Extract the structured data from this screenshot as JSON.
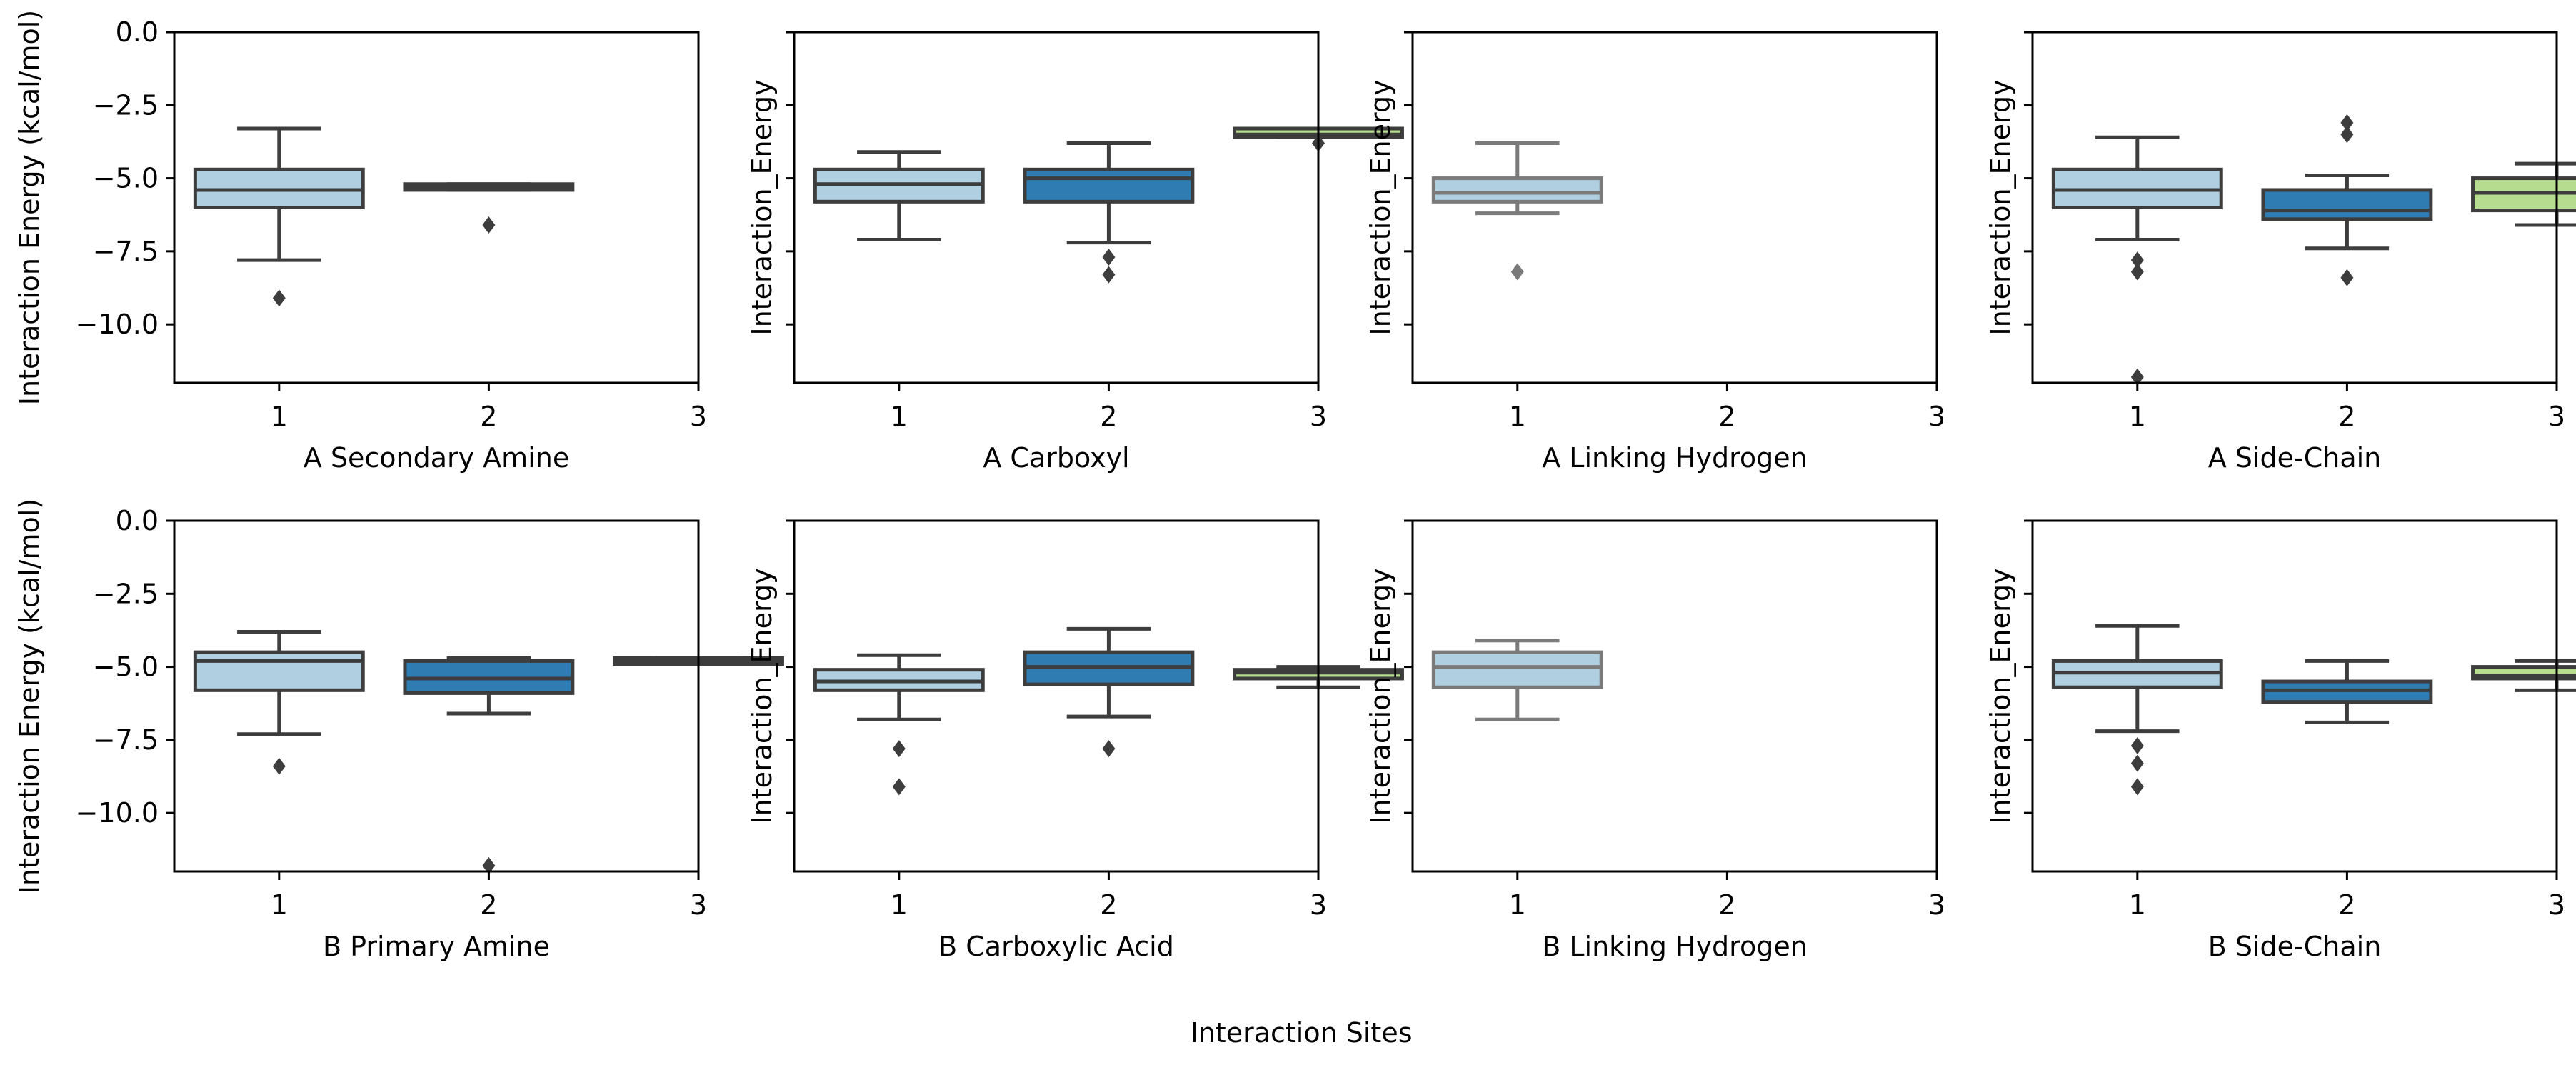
{
  "chart_data": {
    "type": "box",
    "supxlabel": "Interaction Sites",
    "ylim": [
      -12,
      0
    ],
    "yticks": [
      0.0,
      -2.5,
      -5.0,
      -7.5,
      -10.0
    ],
    "ytick_labels": [
      "0.0",
      "−2.5",
      "−5.0",
      "−7.5",
      "−10.0"
    ],
    "xticks": [
      1,
      2,
      3
    ],
    "xtick_labels": [
      "1",
      "2",
      "3"
    ],
    "colors": {
      "1": "#b0cfe0",
      "2": "#2f7cb3",
      "3": "#b6dc8f",
      "edge": "#3d3d3d",
      "edge_light": "#7a7a7a"
    },
    "panels": [
      {
        "xlabel": "A Secondary Amine",
        "ylabel": "Interaction Energy (kcal/mol)",
        "show_yticklabels": true,
        "xtick_labels": [
          "1",
          "2",
          "3"
        ],
        "boxes": [
          {
            "x": 1,
            "whislo": -7.8,
            "q1": -6.0,
            "med": -5.4,
            "q3": -4.7,
            "whishi": -3.3,
            "fliers": [
              -9.1
            ]
          },
          {
            "x": 2,
            "whislo": -5.4,
            "q1": -5.4,
            "med": -5.3,
            "q3": -5.2,
            "whishi": -5.2,
            "fliers": [
              -6.6
            ]
          }
        ]
      },
      {
        "xlabel": "A Carboxyl",
        "ylabel": "Interaction_Energy",
        "show_yticklabels": false,
        "xtick_labels": [
          "1",
          "2",
          "3"
        ],
        "boxes": [
          {
            "x": 1,
            "whislo": -7.1,
            "q1": -5.8,
            "med": -5.2,
            "q3": -4.7,
            "whishi": -4.1,
            "fliers": []
          },
          {
            "x": 2,
            "whislo": -7.2,
            "q1": -5.8,
            "med": -5.0,
            "q3": -4.7,
            "whishi": -3.8,
            "fliers": [
              -7.7,
              -8.3
            ]
          },
          {
            "x": 3,
            "whislo": -3.6,
            "q1": -3.6,
            "med": -3.5,
            "q3": -3.3,
            "whishi": -3.3,
            "fliers": [
              -3.8
            ]
          }
        ]
      },
      {
        "xlabel": "A Linking Hydrogen",
        "ylabel": "Interaction_Energy",
        "show_yticklabels": false,
        "xtick_labels": [
          "1",
          "2",
          "3"
        ],
        "light": true,
        "boxes": [
          {
            "x": 1,
            "whislo": -6.2,
            "q1": -5.8,
            "med": -5.5,
            "q3": -5.0,
            "whishi": -3.8,
            "fliers": [
              -8.2
            ]
          }
        ]
      },
      {
        "xlabel": "A Side-Chain",
        "ylabel": "Interaction_Energy",
        "show_yticklabels": false,
        "xtick_labels": [
          "1",
          "2",
          "3"
        ],
        "boxes": [
          {
            "x": 1,
            "whislo": -7.1,
            "q1": -6.0,
            "med": -5.4,
            "q3": -4.7,
            "whishi": -3.6,
            "fliers": [
              -7.8,
              -8.2,
              -11.8
            ]
          },
          {
            "x": 2,
            "whislo": -7.4,
            "q1": -6.4,
            "med": -6.1,
            "q3": -5.4,
            "whishi": -4.9,
            "fliers": [
              -3.1,
              -3.5,
              -8.4
            ]
          },
          {
            "x": 3,
            "whislo": -6.6,
            "q1": -6.1,
            "med": -5.5,
            "q3": -5.0,
            "whishi": -4.5,
            "fliers": []
          }
        ]
      },
      {
        "xlabel": "B Primary Amine",
        "ylabel": "Interaction Energy (kcal/mol)",
        "show_yticklabels": true,
        "xtick_labels": [
          "1",
          "2",
          "3"
        ],
        "boxes": [
          {
            "x": 1,
            "whislo": -7.3,
            "q1": -5.8,
            "med": -4.8,
            "q3": -4.5,
            "whishi": -3.8,
            "fliers": [
              -8.4
            ]
          },
          {
            "x": 2,
            "whislo": -6.6,
            "q1": -5.9,
            "med": -5.4,
            "q3": -4.8,
            "whishi": -4.7,
            "fliers": [
              -11.8
            ]
          },
          {
            "x": 3,
            "whislo": -4.9,
            "q1": -4.9,
            "med": -4.8,
            "q3": -4.7,
            "whishi": -4.7,
            "fliers": []
          }
        ]
      },
      {
        "xlabel": "B Carboxylic Acid",
        "ylabel": "Interaction_Energy",
        "show_yticklabels": false,
        "xtick_labels": [
          "1",
          "2",
          "3"
        ],
        "boxes": [
          {
            "x": 1,
            "whislo": -6.8,
            "q1": -5.8,
            "med": -5.5,
            "q3": -5.1,
            "whishi": -4.6,
            "fliers": [
              -7.8,
              -9.1
            ]
          },
          {
            "x": 2,
            "whislo": -6.7,
            "q1": -5.6,
            "med": -5.0,
            "q3": -4.5,
            "whishi": -3.7,
            "fliers": [
              -7.8
            ]
          },
          {
            "x": 3,
            "whislo": -5.7,
            "q1": -5.4,
            "med": -5.2,
            "q3": -5.1,
            "whishi": -5.0,
            "fliers": []
          }
        ]
      },
      {
        "xlabel": "B Linking Hydrogen",
        "ylabel": "Interaction_Energy",
        "show_yticklabels": false,
        "xtick_labels": [
          "1",
          "2",
          "3"
        ],
        "light": true,
        "boxes": [
          {
            "x": 1,
            "whislo": -6.8,
            "q1": -5.7,
            "med": -5.0,
            "q3": -4.5,
            "whishi": -4.1,
            "fliers": []
          }
        ]
      },
      {
        "xlabel": "B Side-Chain",
        "ylabel": "Interaction_Energy",
        "show_yticklabels": false,
        "xtick_labels": [
          "1",
          "2",
          "3"
        ],
        "boxes": [
          {
            "x": 1,
            "whislo": -7.2,
            "q1": -5.7,
            "med": -5.2,
            "q3": -4.8,
            "whishi": -3.6,
            "fliers": [
              -7.7,
              -8.3,
              -9.1
            ]
          },
          {
            "x": 2,
            "whislo": -6.9,
            "q1": -6.2,
            "med": -5.8,
            "q3": -5.5,
            "whishi": -4.8,
            "fliers": []
          },
          {
            "x": 3,
            "whislo": -5.8,
            "q1": -5.4,
            "med": -5.3,
            "q3": -5.0,
            "whishi": -4.8,
            "fliers": []
          }
        ]
      }
    ]
  }
}
